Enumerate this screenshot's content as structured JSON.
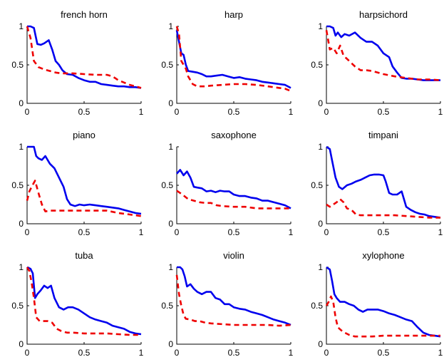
{
  "chart_data": [
    {
      "type": "line",
      "title": "french horn",
      "xlim": [
        0,
        1
      ],
      "ylim": [
        0,
        1
      ],
      "xticks": [
        "0",
        "0.5",
        "1"
      ],
      "yticks": [
        "0",
        "0.5",
        "1"
      ],
      "series": [
        {
          "color": "#0000ee",
          "style": "solid",
          "x": [
            0,
            0.03,
            0.06,
            0.09,
            0.12,
            0.15,
            0.19,
            0.22,
            0.25,
            0.28,
            0.31,
            0.35,
            0.4,
            0.45,
            0.5,
            0.55,
            0.6,
            0.65,
            0.7,
            0.75,
            0.8,
            0.85,
            0.9,
            0.95,
            1
          ],
          "y": [
            1.0,
            1.0,
            0.98,
            0.77,
            0.76,
            0.78,
            0.82,
            0.7,
            0.55,
            0.5,
            0.43,
            0.38,
            0.37,
            0.33,
            0.3,
            0.28,
            0.28,
            0.25,
            0.24,
            0.23,
            0.22,
            0.22,
            0.21,
            0.21,
            0.2
          ]
        },
        {
          "color": "#ee0000",
          "style": "dashed",
          "x": [
            0,
            0.03,
            0.06,
            0.1,
            0.15,
            0.2,
            0.25,
            0.3,
            0.35,
            0.4,
            0.5,
            0.6,
            0.7,
            0.75,
            0.8,
            0.85,
            0.9,
            0.95,
            1
          ],
          "y": [
            1.0,
            0.85,
            0.55,
            0.47,
            0.44,
            0.42,
            0.4,
            0.39,
            0.39,
            0.39,
            0.38,
            0.37,
            0.37,
            0.35,
            0.3,
            0.27,
            0.24,
            0.22,
            0.2
          ]
        }
      ]
    },
    {
      "type": "line",
      "title": "harp",
      "xlim": [
        0,
        1
      ],
      "ylim": [
        0,
        1
      ],
      "xticks": [
        "0",
        "0.5",
        "1"
      ],
      "yticks": [
        "0",
        "0.5",
        "1"
      ],
      "series": [
        {
          "color": "#0000ee",
          "style": "solid",
          "x": [
            0,
            0.02,
            0.04,
            0.06,
            0.08,
            0.1,
            0.14,
            0.18,
            0.22,
            0.26,
            0.3,
            0.35,
            0.4,
            0.45,
            0.5,
            0.55,
            0.6,
            0.65,
            0.7,
            0.75,
            0.8,
            0.85,
            0.9,
            0.95,
            1
          ],
          "y": [
            0.95,
            0.8,
            0.65,
            0.63,
            0.5,
            0.42,
            0.41,
            0.4,
            0.38,
            0.35,
            0.35,
            0.36,
            0.37,
            0.35,
            0.33,
            0.34,
            0.32,
            0.31,
            0.3,
            0.28,
            0.27,
            0.26,
            0.25,
            0.24,
            0.2
          ]
        },
        {
          "color": "#ee0000",
          "style": "dashed",
          "x": [
            0,
            0.02,
            0.04,
            0.06,
            0.08,
            0.1,
            0.14,
            0.18,
            0.25,
            0.3,
            0.4,
            0.5,
            0.6,
            0.7,
            0.8,
            0.85,
            0.9,
            0.95,
            1
          ],
          "y": [
            1.0,
            0.9,
            0.55,
            0.5,
            0.45,
            0.35,
            0.25,
            0.22,
            0.22,
            0.23,
            0.24,
            0.25,
            0.25,
            0.24,
            0.22,
            0.21,
            0.2,
            0.19,
            0.16
          ]
        }
      ]
    },
    {
      "type": "line",
      "title": "harpsichord",
      "xlim": [
        0,
        1
      ],
      "ylim": [
        0,
        1
      ],
      "xticks": [
        "0",
        "0.5",
        "1"
      ],
      "yticks": [
        "0",
        "0.5",
        "1"
      ],
      "series": [
        {
          "color": "#0000ee",
          "style": "solid",
          "x": [
            0,
            0.03,
            0.06,
            0.08,
            0.1,
            0.13,
            0.16,
            0.2,
            0.25,
            0.3,
            0.35,
            0.4,
            0.45,
            0.5,
            0.55,
            0.58,
            0.62,
            0.66,
            0.7,
            0.75,
            0.8,
            0.85,
            0.9,
            0.95,
            1
          ],
          "y": [
            1.0,
            1.0,
            0.98,
            0.88,
            0.92,
            0.86,
            0.9,
            0.88,
            0.92,
            0.85,
            0.8,
            0.8,
            0.75,
            0.65,
            0.6,
            0.48,
            0.4,
            0.33,
            0.32,
            0.32,
            0.31,
            0.3,
            0.3,
            0.3,
            0.3
          ]
        },
        {
          "color": "#ee0000",
          "style": "dashed",
          "x": [
            0,
            0.03,
            0.06,
            0.09,
            0.12,
            0.15,
            0.2,
            0.25,
            0.3,
            0.35,
            0.4,
            0.5,
            0.6,
            0.7,
            0.8,
            0.9,
            1
          ],
          "y": [
            0.95,
            0.7,
            0.72,
            0.65,
            0.75,
            0.62,
            0.55,
            0.48,
            0.43,
            0.43,
            0.42,
            0.38,
            0.35,
            0.33,
            0.31,
            0.31,
            0.3
          ]
        }
      ]
    },
    {
      "type": "line",
      "title": "piano",
      "xlim": [
        0,
        1
      ],
      "ylim": [
        0,
        1
      ],
      "xticks": [
        "0",
        "0.5",
        "1"
      ],
      "yticks": [
        "0",
        "0.5",
        "1"
      ],
      "series": [
        {
          "color": "#0000ee",
          "style": "solid",
          "x": [
            0,
            0.03,
            0.06,
            0.08,
            0.1,
            0.13,
            0.16,
            0.2,
            0.24,
            0.28,
            0.32,
            0.35,
            0.38,
            0.42,
            0.46,
            0.5,
            0.55,
            0.6,
            0.65,
            0.7,
            0.75,
            0.8,
            0.85,
            0.9,
            0.95,
            1
          ],
          "y": [
            1.0,
            1.0,
            1.0,
            0.88,
            0.85,
            0.83,
            0.88,
            0.78,
            0.72,
            0.6,
            0.48,
            0.32,
            0.25,
            0.23,
            0.25,
            0.24,
            0.25,
            0.24,
            0.23,
            0.22,
            0.21,
            0.2,
            0.18,
            0.16,
            0.14,
            0.13
          ]
        },
        {
          "color": "#ee0000",
          "style": "dashed",
          "x": [
            0,
            0.02,
            0.04,
            0.07,
            0.1,
            0.13,
            0.16,
            0.2,
            0.3,
            0.4,
            0.5,
            0.6,
            0.7,
            0.8,
            0.9,
            1
          ],
          "y": [
            0.3,
            0.42,
            0.48,
            0.56,
            0.4,
            0.25,
            0.16,
            0.17,
            0.17,
            0.17,
            0.17,
            0.17,
            0.17,
            0.14,
            0.12,
            0.1
          ]
        }
      ]
    },
    {
      "type": "line",
      "title": "saxophone",
      "xlim": [
        0,
        1
      ],
      "ylim": [
        0,
        1
      ],
      "xticks": [
        "0",
        "0.5",
        "1"
      ],
      "yticks": [
        "0",
        "0.5",
        "1"
      ],
      "series": [
        {
          "color": "#0000ee",
          "style": "solid",
          "x": [
            0,
            0.03,
            0.06,
            0.09,
            0.12,
            0.15,
            0.18,
            0.22,
            0.26,
            0.3,
            0.34,
            0.38,
            0.42,
            0.46,
            0.5,
            0.55,
            0.6,
            0.65,
            0.7,
            0.75,
            0.8,
            0.85,
            0.9,
            0.95,
            1
          ],
          "y": [
            0.65,
            0.7,
            0.63,
            0.68,
            0.6,
            0.48,
            0.47,
            0.46,
            0.42,
            0.43,
            0.41,
            0.43,
            0.42,
            0.42,
            0.38,
            0.36,
            0.36,
            0.34,
            0.33,
            0.3,
            0.3,
            0.28,
            0.26,
            0.24,
            0.2
          ]
        },
        {
          "color": "#ee0000",
          "style": "dashed",
          "x": [
            0,
            0.05,
            0.1,
            0.15,
            0.2,
            0.25,
            0.3,
            0.35,
            0.4,
            0.5,
            0.6,
            0.7,
            0.8,
            0.9,
            1
          ],
          "y": [
            0.43,
            0.38,
            0.32,
            0.3,
            0.28,
            0.27,
            0.27,
            0.24,
            0.23,
            0.22,
            0.22,
            0.2,
            0.2,
            0.2,
            0.2
          ]
        }
      ]
    },
    {
      "type": "line",
      "title": "timpani",
      "xlim": [
        0,
        1
      ],
      "ylim": [
        0,
        1
      ],
      "xticks": [
        "0",
        "0.5",
        "1"
      ],
      "yticks": [
        "0",
        "0.5",
        "1"
      ],
      "series": [
        {
          "color": "#0000ee",
          "style": "solid",
          "x": [
            0,
            0.03,
            0.05,
            0.08,
            0.11,
            0.14,
            0.18,
            0.22,
            0.26,
            0.3,
            0.34,
            0.38,
            0.42,
            0.46,
            0.5,
            0.52,
            0.55,
            0.58,
            0.62,
            0.66,
            0.7,
            0.74,
            0.78,
            0.82,
            0.86,
            0.9,
            0.95,
            1
          ],
          "y": [
            1.0,
            0.97,
            0.82,
            0.6,
            0.48,
            0.45,
            0.5,
            0.52,
            0.55,
            0.57,
            0.6,
            0.63,
            0.64,
            0.64,
            0.63,
            0.55,
            0.4,
            0.38,
            0.38,
            0.42,
            0.22,
            0.18,
            0.15,
            0.13,
            0.12,
            0.1,
            0.09,
            0.08
          ]
        },
        {
          "color": "#ee0000",
          "style": "dashed",
          "x": [
            0,
            0.03,
            0.06,
            0.09,
            0.12,
            0.15,
            0.18,
            0.22,
            0.26,
            0.3,
            0.4,
            0.5,
            0.6,
            0.7,
            0.8,
            0.9,
            1
          ],
          "y": [
            0.25,
            0.22,
            0.25,
            0.28,
            0.32,
            0.28,
            0.2,
            0.18,
            0.12,
            0.11,
            0.11,
            0.11,
            0.11,
            0.1,
            0.09,
            0.08,
            0.08
          ]
        }
      ]
    },
    {
      "type": "line",
      "title": "tuba",
      "xlim": [
        0,
        1
      ],
      "ylim": [
        0,
        1
      ],
      "xticks": [
        "0",
        "0.5",
        "1"
      ],
      "yticks": [
        "0",
        "0.5",
        "1"
      ],
      "series": [
        {
          "color": "#0000ee",
          "style": "solid",
          "x": [
            0,
            0.03,
            0.05,
            0.07,
            0.09,
            0.12,
            0.15,
            0.18,
            0.21,
            0.24,
            0.28,
            0.32,
            0.36,
            0.4,
            0.45,
            0.5,
            0.55,
            0.6,
            0.65,
            0.7,
            0.75,
            0.8,
            0.85,
            0.9,
            0.95,
            1
          ],
          "y": [
            1.0,
            0.98,
            0.92,
            0.6,
            0.65,
            0.7,
            0.76,
            0.73,
            0.76,
            0.6,
            0.48,
            0.45,
            0.48,
            0.48,
            0.45,
            0.4,
            0.35,
            0.32,
            0.3,
            0.28,
            0.24,
            0.22,
            0.2,
            0.16,
            0.14,
            0.13
          ]
        },
        {
          "color": "#ee0000",
          "style": "dashed",
          "x": [
            0,
            0.02,
            0.04,
            0.06,
            0.08,
            0.11,
            0.14,
            0.18,
            0.22,
            0.26,
            0.3,
            0.35,
            0.4,
            0.5,
            0.6,
            0.7,
            0.8,
            0.9,
            1
          ],
          "y": [
            1.0,
            0.95,
            0.8,
            0.6,
            0.35,
            0.3,
            0.3,
            0.3,
            0.28,
            0.2,
            0.17,
            0.15,
            0.15,
            0.14,
            0.14,
            0.14,
            0.13,
            0.12,
            0.12
          ]
        }
      ]
    },
    {
      "type": "line",
      "title": "violin",
      "xlim": [
        0,
        1
      ],
      "ylim": [
        0,
        1
      ],
      "xticks": [
        "0",
        "0.5",
        "1"
      ],
      "yticks": [
        "0",
        "0.5",
        "1"
      ],
      "series": [
        {
          "color": "#0000ee",
          "style": "solid",
          "x": [
            0,
            0.03,
            0.05,
            0.07,
            0.09,
            0.12,
            0.15,
            0.18,
            0.22,
            0.26,
            0.3,
            0.34,
            0.38,
            0.42,
            0.46,
            0.5,
            0.55,
            0.6,
            0.65,
            0.7,
            0.75,
            0.8,
            0.85,
            0.9,
            0.95,
            1
          ],
          "y": [
            1.0,
            1.0,
            0.97,
            0.88,
            0.75,
            0.78,
            0.72,
            0.68,
            0.65,
            0.68,
            0.68,
            0.6,
            0.58,
            0.52,
            0.52,
            0.48,
            0.46,
            0.45,
            0.42,
            0.4,
            0.38,
            0.35,
            0.32,
            0.3,
            0.28,
            0.25
          ]
        },
        {
          "color": "#ee0000",
          "style": "dashed",
          "x": [
            0,
            0.02,
            0.04,
            0.06,
            0.08,
            0.12,
            0.16,
            0.2,
            0.25,
            0.3,
            0.4,
            0.5,
            0.6,
            0.7,
            0.8,
            0.9,
            1
          ],
          "y": [
            0.9,
            0.65,
            0.5,
            0.38,
            0.33,
            0.32,
            0.3,
            0.3,
            0.28,
            0.27,
            0.26,
            0.25,
            0.25,
            0.25,
            0.25,
            0.24,
            0.25
          ]
        }
      ]
    },
    {
      "type": "line",
      "title": "xylophone",
      "xlim": [
        0,
        1
      ],
      "ylim": [
        0,
        1
      ],
      "xticks": [
        "0",
        "0.5",
        "1"
      ],
      "yticks": [
        "0",
        "0.5",
        "1"
      ],
      "series": [
        {
          "color": "#0000ee",
          "style": "solid",
          "x": [
            0,
            0.03,
            0.05,
            0.07,
            0.09,
            0.12,
            0.16,
            0.2,
            0.24,
            0.28,
            0.32,
            0.36,
            0.4,
            0.45,
            0.5,
            0.55,
            0.6,
            0.65,
            0.7,
            0.75,
            0.8,
            0.85,
            0.9,
            0.95,
            1
          ],
          "y": [
            1.0,
            0.97,
            0.82,
            0.65,
            0.6,
            0.55,
            0.55,
            0.52,
            0.5,
            0.45,
            0.42,
            0.45,
            0.45,
            0.45,
            0.43,
            0.4,
            0.38,
            0.35,
            0.32,
            0.3,
            0.22,
            0.15,
            0.12,
            0.11,
            0.1
          ]
        },
        {
          "color": "#ee0000",
          "style": "dashed",
          "x": [
            0,
            0.02,
            0.04,
            0.06,
            0.08,
            0.1,
            0.13,
            0.16,
            0.2,
            0.25,
            0.3,
            0.4,
            0.5,
            0.6,
            0.7,
            0.8,
            0.9,
            1
          ],
          "y": [
            0.5,
            0.55,
            0.62,
            0.55,
            0.35,
            0.22,
            0.18,
            0.15,
            0.12,
            0.1,
            0.1,
            0.1,
            0.11,
            0.11,
            0.11,
            0.11,
            0.11,
            0.11
          ]
        }
      ]
    }
  ]
}
